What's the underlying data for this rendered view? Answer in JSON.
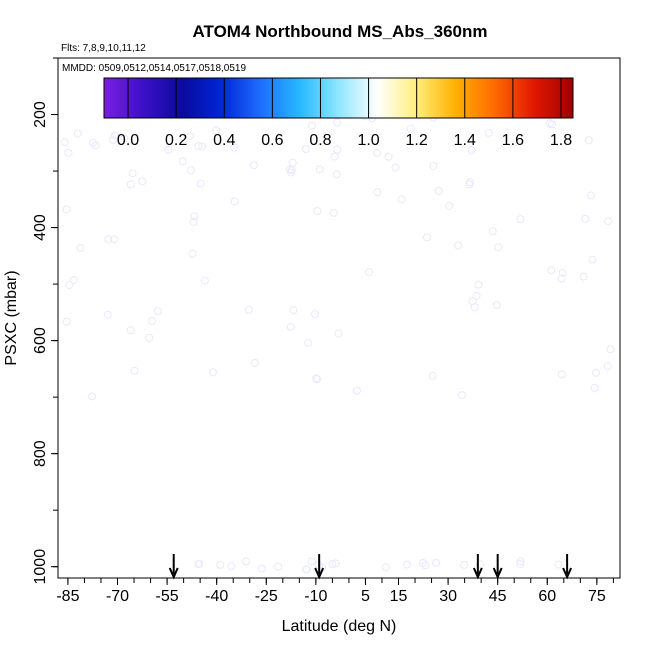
{
  "chart_data": {
    "type": "heatmap",
    "title": "ATOM4 Northbound MS_Abs_360nm",
    "subtitle_flights": "Flts: 7,8,9,10,11,12",
    "subtitle_dates": "MMDD: 0509,0512,0514,0517,0518,0519",
    "xlabel": "Latitude (deg N)",
    "ylabel": "PSXC (mbar)",
    "xlim": [
      -88,
      82
    ],
    "ylim": [
      1020,
      100
    ],
    "x_ticks": [
      -85,
      -70,
      -55,
      -40,
      -25,
      -10,
      5,
      15,
      30,
      45,
      60,
      75
    ],
    "y_ticks": [
      200,
      400,
      600,
      800,
      1000
    ],
    "colorbar": {
      "min": -0.1,
      "max": 1.85,
      "ticks": [
        0.0,
        0.2,
        0.4,
        0.6,
        0.8,
        1.0,
        1.2,
        1.4,
        1.6,
        1.8
      ],
      "tick_labels": [
        "0.0",
        "0.2",
        "0.4",
        "0.6",
        "0.8",
        "1.0",
        "1.2",
        "1.4",
        "1.6",
        "1.8"
      ],
      "colors": [
        "#7a1fe0",
        "#3d10c8",
        "#0a0a9c",
        "#0026d8",
        "#1e6cff",
        "#26b8ff",
        "#8ee6ff",
        "#ffffff",
        "#ffee7a",
        "#ffb000",
        "#ff6a00",
        "#e01800",
        "#a10000"
      ]
    },
    "vertical_profile_arrows_lat": [
      -53,
      -9,
      39,
      45,
      66
    ]
  }
}
